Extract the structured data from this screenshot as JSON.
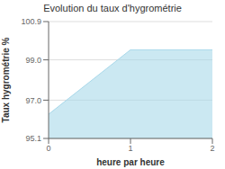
{
  "chart_data": {
    "type": "area",
    "title": "Evolution du taux d'hygrométrie",
    "xlabel": "heure par heure",
    "ylabel": "Taux hygrométrie %",
    "x": [
      0,
      1,
      2
    ],
    "values": [
      96.3,
      99.5,
      99.5
    ],
    "xlim": [
      0,
      2
    ],
    "xticks": [
      0,
      1,
      2
    ],
    "ylim": [
      95.1,
      100.9
    ],
    "yticks": [
      95.1,
      {
        "value": 97.0,
        "label": "97.0"
      },
      {
        "value": 99.0,
        "label": "99.0"
      },
      100.9
    ],
    "grid": true,
    "color": "#a8d8ea"
  }
}
